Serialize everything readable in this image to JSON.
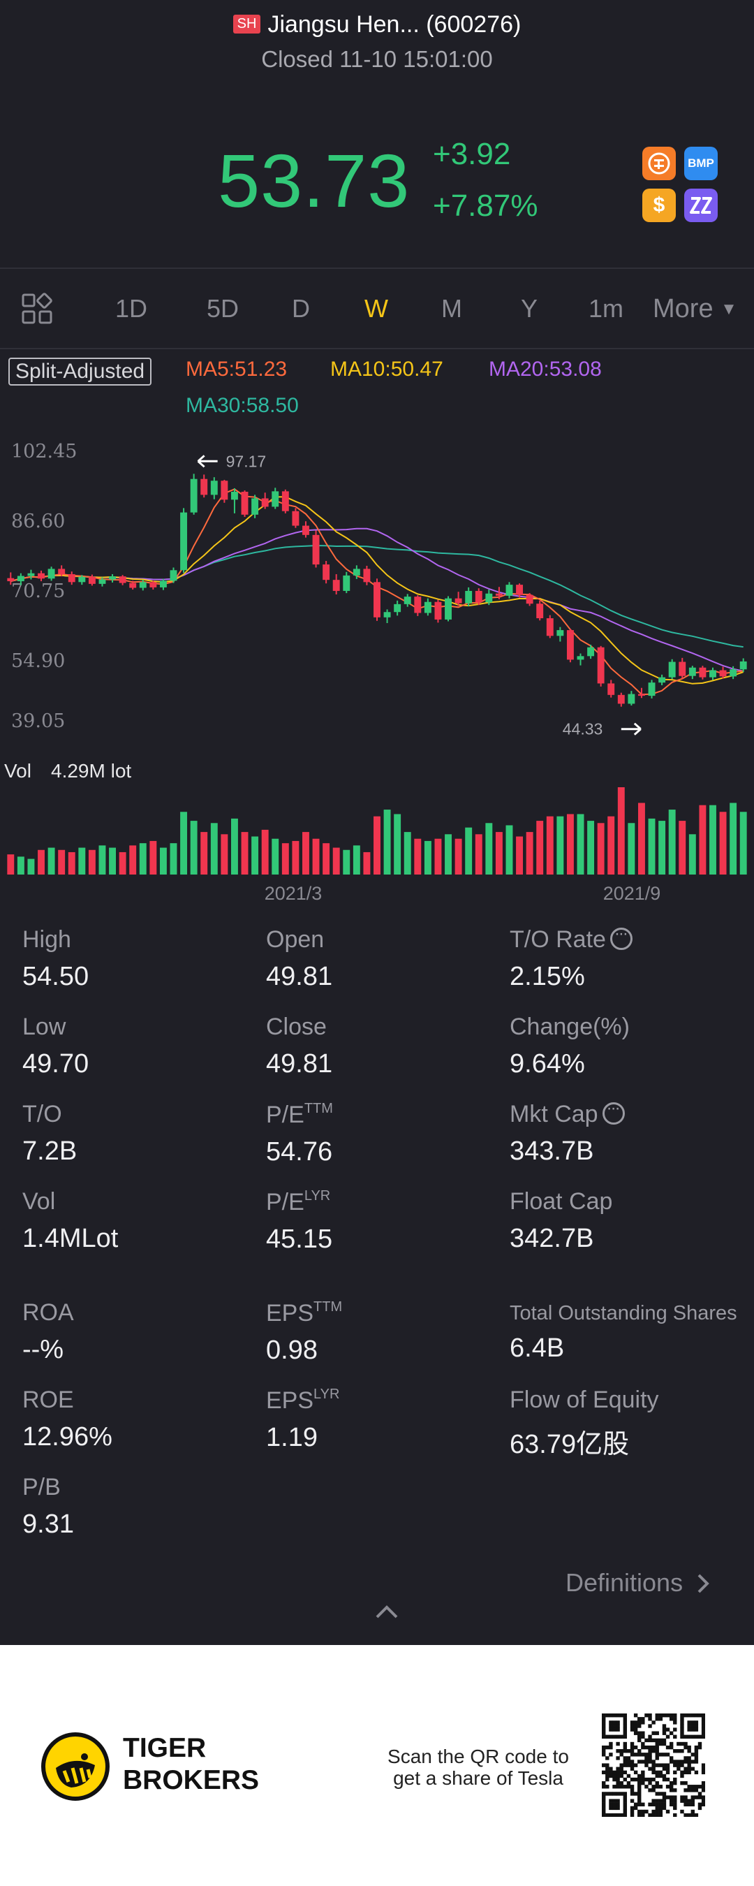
{
  "header": {
    "exchange_badge": "SH",
    "title": "Jiangsu Hen... (600276)",
    "status": "Closed 11-10 15:01:00"
  },
  "quote": {
    "price": "53.73",
    "change": "+3.92",
    "change_pct": "+7.87%"
  },
  "badges": [
    {
      "icon": "margin-icon",
      "text": "",
      "color": "#f57c28"
    },
    {
      "icon": "bmp-icon",
      "text": "BMP",
      "color": "#2f8cf0"
    },
    {
      "icon": "dollar-icon",
      "text": "$",
      "color": "#f5a623"
    },
    {
      "icon": "zz-icon",
      "text": "ZZ",
      "color": "#7a5cf0"
    }
  ],
  "tabs": [
    "1D",
    "5D",
    "D",
    "W",
    "M",
    "Y",
    "1m",
    "More"
  ],
  "active_tab": "W",
  "chart_toolbar": {
    "split_label": "Split-Adjusted",
    "ma5": "MA5:51.23",
    "ma10": "MA10:50.47",
    "ma20": "MA20:53.08",
    "ma30": "MA30:58.50"
  },
  "colors": {
    "up": "#32c878",
    "down": "#f0364f",
    "ma5": "#ff6a3d",
    "ma10": "#f5c518",
    "ma20": "#b266f0",
    "ma30": "#2eb8a0"
  },
  "chart_data": {
    "type": "candlestick",
    "y_ticks": [
      "102.45",
      "86.60",
      "70.75",
      "54.90",
      "39.05"
    ],
    "ylim": [
      39.05,
      102.45
    ],
    "x_ticks": [
      "2021/3",
      "2021/9"
    ],
    "high_annotation": "97.17",
    "low_annotation": "44.33",
    "volume_label": "Vol",
    "volume_value": "4.29M lot",
    "candles": [
      [
        73.5,
        74.8,
        72.0,
        72.8
      ],
      [
        72.8,
        74.6,
        71.9,
        74.0
      ],
      [
        74.0,
        75.4,
        73.2,
        74.6
      ],
      [
        74.6,
        75.2,
        72.8,
        73.4
      ],
      [
        73.4,
        76.1,
        72.9,
        75.6
      ],
      [
        75.6,
        76.4,
        73.9,
        74.4
      ],
      [
        74.4,
        75.0,
        72.0,
        72.6
      ],
      [
        72.6,
        74.2,
        72.0,
        73.8
      ],
      [
        73.8,
        74.3,
        71.8,
        72.2
      ],
      [
        72.2,
        73.7,
        71.6,
        73.2
      ],
      [
        73.2,
        74.4,
        72.5,
        73.9
      ],
      [
        73.9,
        74.2,
        71.9,
        72.4
      ],
      [
        72.4,
        72.9,
        70.9,
        71.3
      ],
      [
        71.3,
        73.1,
        70.7,
        72.6
      ],
      [
        72.6,
        72.9,
        70.9,
        71.4
      ],
      [
        71.4,
        73.3,
        70.8,
        72.9
      ],
      [
        72.9,
        75.9,
        72.4,
        75.3
      ],
      [
        75.3,
        89.4,
        74.7,
        88.4
      ],
      [
        88.4,
        97.17,
        87.9,
        96.0
      ],
      [
        96.0,
        97.0,
        91.8,
        92.4
      ],
      [
        92.4,
        96.4,
        91.4,
        95.6
      ],
      [
        95.6,
        95.8,
        90.6,
        91.3
      ],
      [
        91.3,
        93.9,
        88.2,
        93.1
      ],
      [
        93.1,
        93.4,
        87.4,
        87.9
      ],
      [
        87.9,
        92.4,
        87.1,
        91.6
      ],
      [
        91.6,
        92.9,
        89.2,
        89.7
      ],
      [
        89.7,
        94.0,
        89.2,
        93.2
      ],
      [
        93.2,
        93.6,
        88.2,
        88.7
      ],
      [
        88.7,
        89.4,
        84.9,
        85.4
      ],
      [
        85.4,
        86.4,
        82.7,
        83.3
      ],
      [
        83.3,
        84.3,
        75.9,
        76.6
      ],
      [
        76.6,
        77.4,
        72.3,
        73.1
      ],
      [
        73.1,
        74.4,
        69.8,
        70.6
      ],
      [
        70.6,
        74.9,
        70.1,
        74.1
      ],
      [
        74.1,
        76.4,
        73.3,
        75.6
      ],
      [
        75.6,
        76.3,
        71.9,
        72.6
      ],
      [
        72.6,
        73.4,
        63.8,
        64.6
      ],
      [
        64.6,
        66.4,
        63.3,
        65.8
      ],
      [
        65.8,
        68.4,
        65.0,
        67.6
      ],
      [
        67.6,
        69.9,
        67.0,
        69.3
      ],
      [
        69.3,
        69.6,
        64.9,
        65.6
      ],
      [
        65.6,
        68.9,
        65.0,
        68.1
      ],
      [
        68.1,
        68.6,
        63.4,
        64.1
      ],
      [
        64.1,
        69.4,
        63.7,
        68.9
      ],
      [
        68.9,
        70.4,
        67.2,
        67.8
      ],
      [
        67.8,
        71.4,
        67.1,
        70.6
      ],
      [
        70.6,
        71.2,
        67.4,
        68.0
      ],
      [
        68.0,
        70.9,
        67.4,
        70.0
      ],
      [
        70.0,
        71.5,
        68.7,
        69.5
      ],
      [
        69.5,
        72.6,
        68.9,
        72.0
      ],
      [
        72.0,
        72.3,
        69.1,
        69.7
      ],
      [
        69.7,
        70.1,
        67.2,
        67.7
      ],
      [
        67.7,
        68.4,
        63.9,
        64.4
      ],
      [
        64.4,
        65.1,
        59.9,
        60.4
      ],
      [
        60.4,
        62.4,
        59.1,
        61.7
      ],
      [
        61.7,
        62.0,
        54.4,
        55.0
      ],
      [
        55.0,
        56.4,
        53.7,
        55.8
      ],
      [
        55.8,
        58.4,
        55.2,
        57.8
      ],
      [
        57.8,
        58.1,
        48.9,
        49.6
      ],
      [
        49.6,
        50.4,
        46.4,
        47.0
      ],
      [
        47.0,
        47.5,
        44.33,
        45.0
      ],
      [
        45.0,
        47.9,
        44.6,
        47.2
      ],
      [
        47.2,
        48.6,
        46.3,
        46.8
      ],
      [
        46.8,
        50.4,
        46.2,
        49.8
      ],
      [
        49.8,
        51.6,
        49.2,
        51.0
      ],
      [
        51.0,
        55.1,
        50.6,
        54.5
      ],
      [
        54.5,
        55.4,
        50.7,
        51.3
      ],
      [
        51.3,
        53.6,
        50.6,
        53.2
      ],
      [
        53.2,
        53.6,
        50.5,
        51.0
      ],
      [
        51.0,
        53.2,
        50.4,
        52.6
      ],
      [
        52.6,
        53.4,
        50.7,
        51.2
      ],
      [
        51.2,
        53.5,
        50.6,
        52.8
      ],
      [
        52.8,
        55.3,
        52.2,
        54.6
      ]
    ],
    "volumes": [
      0.9,
      0.8,
      0.7,
      1.1,
      1.2,
      1.1,
      1.0,
      1.2,
      1.1,
      1.3,
      1.2,
      1.0,
      1.3,
      1.4,
      1.5,
      1.2,
      1.4,
      2.8,
      2.4,
      1.9,
      2.3,
      1.8,
      2.5,
      1.9,
      1.7,
      2.0,
      1.6,
      1.4,
      1.5,
      1.9,
      1.6,
      1.4,
      1.2,
      1.1,
      1.3,
      1.0,
      2.6,
      2.9,
      2.7,
      1.9,
      1.6,
      1.5,
      1.6,
      1.8,
      1.6,
      2.1,
      1.8,
      2.3,
      1.9,
      2.2,
      1.7,
      1.9,
      2.4,
      2.6,
      2.6,
      2.7,
      2.7,
      2.4,
      2.3,
      2.6,
      3.9,
      2.3,
      3.2,
      2.5,
      2.4,
      2.9,
      2.4,
      1.8,
      3.1,
      3.1,
      2.8,
      3.2,
      2.8
    ]
  },
  "stats": {
    "high_label": "High",
    "high_value": "54.50",
    "open_label": "Open",
    "open_value": "49.81",
    "to_rate_label": "T/O Rate",
    "to_rate_value": "2.15%",
    "low_label": "Low",
    "low_value": "49.70",
    "close_label": "Close",
    "close_value": "49.81",
    "change_label": "Change(%)",
    "change_value": "9.64%",
    "to_label": "T/O",
    "to_value": "7.2B",
    "pe_ttm_label": "P/E",
    "pe_ttm_sup": "TTM",
    "pe_ttm_value": "54.76",
    "mkt_cap_label": "Mkt Cap",
    "mkt_cap_value": "343.7B",
    "vol_label": "Vol",
    "vol_value": "1.4MLot",
    "pe_lyr_label": "P/E",
    "pe_lyr_sup": "LYR",
    "pe_lyr_value": "45.15",
    "float_cap_label": "Float Cap",
    "float_cap_value": "342.7B",
    "roa_label": "ROA",
    "roa_value": "--%",
    "eps_ttm_label": "EPS",
    "eps_ttm_sup": "TTM",
    "eps_ttm_value": "0.98",
    "shares_label": "Total Outstanding Shares",
    "shares_value": "6.4B",
    "roe_label": "ROE",
    "roe_value": "12.96%",
    "eps_lyr_label": "EPS",
    "eps_lyr_sup": "LYR",
    "eps_lyr_value": "1.19",
    "flow_label": "Flow of Equity",
    "flow_value": "63.79亿股",
    "pb_label": "P/B",
    "pb_value": "9.31"
  },
  "definitions_link": "Definitions",
  "footer": {
    "brand_line1": "TIGER",
    "brand_line2": "BROKERS",
    "promo_line1": "Scan the QR code to",
    "promo_line2": "get a share of Tesla"
  }
}
